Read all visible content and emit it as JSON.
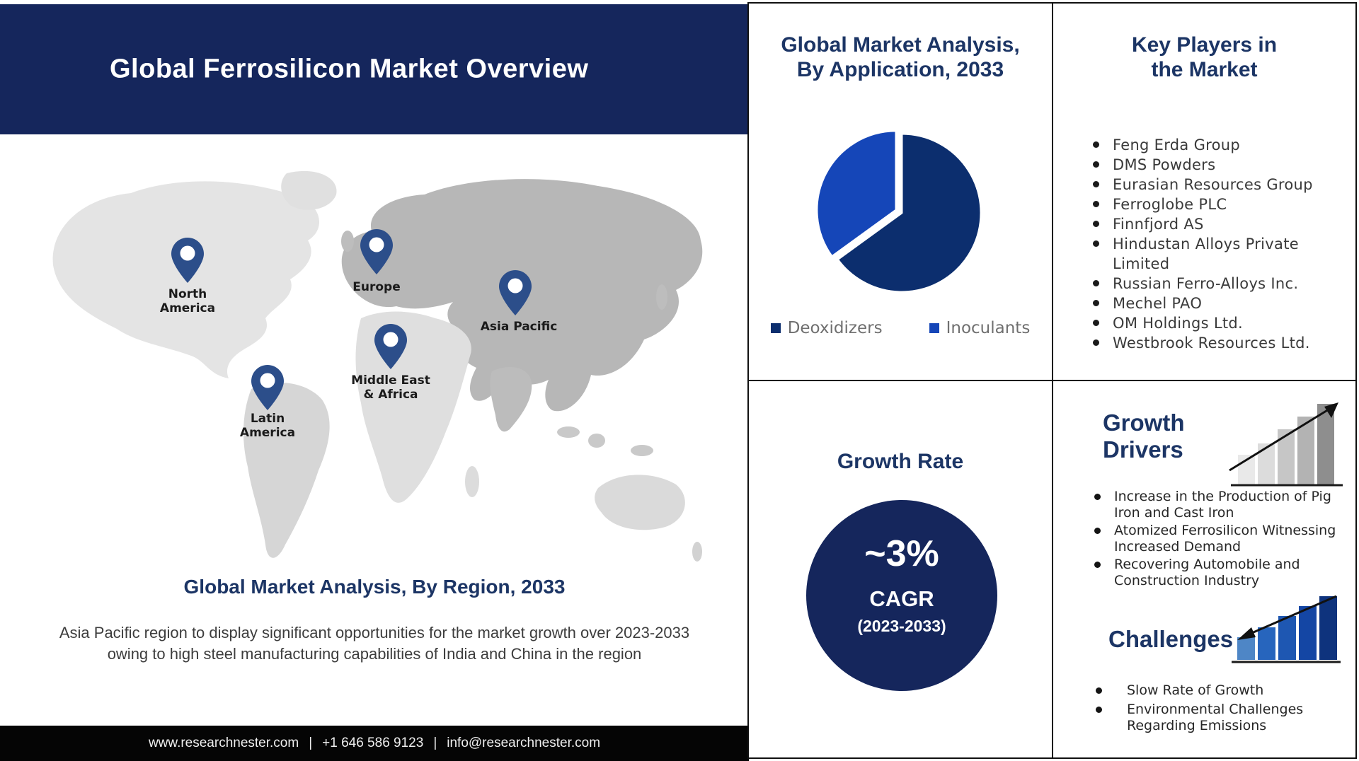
{
  "header": {
    "title": "Global Ferrosilicon Market Overview"
  },
  "region_section": {
    "caption": "Global Market Analysis, By Region, 2033",
    "description": "Asia Pacific region to display significant opportunities for the market growth over 2023-2033 owing to high steel manufacturing capabilities of India and China in the region",
    "regions": [
      {
        "label": "North America"
      },
      {
        "label": "Europe"
      },
      {
        "label": "Asia Pacific"
      },
      {
        "label": "Middle East & Africa"
      },
      {
        "label": "Latin America"
      }
    ]
  },
  "application_panel": {
    "title_line1": "Global Market Analysis,",
    "title_line2": "By Application, 2033"
  },
  "chart_data": [
    {
      "type": "pie",
      "title": "Global Market Analysis, By Application, 2033",
      "labels": [
        "Deoxidizers",
        "Inoculants"
      ],
      "values": [
        65,
        35
      ],
      "colors": [
        "#0C2E6E",
        "#1546B8"
      ],
      "start_angle_deg": 0,
      "direction": "clockwise",
      "legend_position": "bottom"
    }
  ],
  "key_players": {
    "title_line1": "Key Players in",
    "title_line2": "the Market",
    "items": [
      "Feng Erda Group",
      "DMS Powders",
      "Eurasian Resources Group",
      "Ferroglobe PLC",
      "Finnfjord AS",
      "Hindustan Alloys Private Limited",
      "Russian Ferro-Alloys Inc.",
      "Mechel PAO",
      "OM Holdings Ltd.",
      "Westbrook Resources Ltd."
    ]
  },
  "growth_rate": {
    "title": "Growth Rate",
    "value": "~3%",
    "metric": "CAGR",
    "period": "(2023-2033)"
  },
  "growth_drivers": {
    "title_line1": "Growth",
    "title_line2": "Drivers",
    "items": [
      "Increase in the Production of Pig Iron and Cast Iron",
      "Atomized Ferrosilicon Witnessing Increased Demand",
      "Recovering Automobile and Construction Industry"
    ]
  },
  "challenges": {
    "title": "Challenges",
    "items": [
      "Slow Rate of Growth",
      "Environmental Challenges Regarding Emissions"
    ]
  },
  "footer": {
    "website": "www.researchnester.com",
    "phone": "+1 646 586 9123",
    "email": "info@researchnester.com",
    "divider": "|"
  },
  "colors": {
    "header_navy": "#15265C",
    "panel_heading_navy": "#1C3565",
    "pie_deoxidizers": "#0C2E6E",
    "pie_inoculants": "#1546B8",
    "map_pin_blue": "#2C4E8A",
    "footer_bg": "#050505",
    "challenge_bar_blues": [
      "#4E86C6",
      "#2765BD",
      "#1E57B2",
      "#1446A4",
      "#0E337D"
    ],
    "driver_bar_grays": [
      "#E9E9E9",
      "#DCDCDC",
      "#C6C6C6",
      "#B3B3B3",
      "#8E8E8E"
    ]
  }
}
